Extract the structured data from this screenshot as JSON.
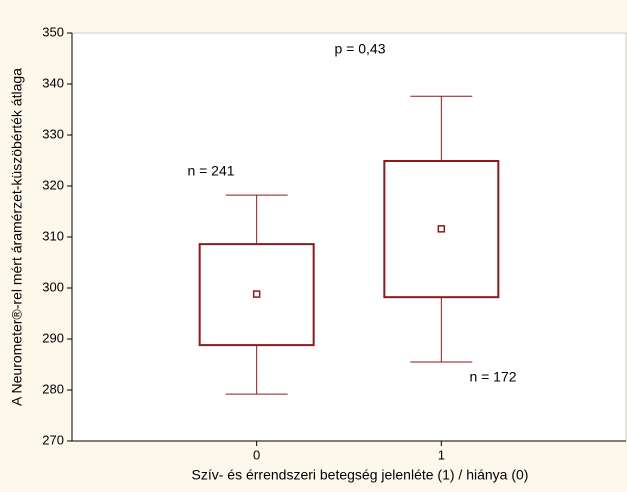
{
  "chart_data": {
    "type": "box",
    "x_label": "Szív- és érrendszeri betegség jelenléte (1) / hiánya (0)",
    "y_label": "A Neurometer®-rel mért áramérzet-küszöbérték átlaga",
    "categories": [
      "0",
      "1"
    ],
    "color": "#8b1a1a",
    "series": [
      {
        "mean": [
          298.8,
          311.6
        ],
        "box_low": [
          288.8,
          298.2
        ],
        "box_high": [
          308.6,
          324.9
        ],
        "whisker_low": [
          279.2,
          285.5
        ],
        "whisker_high": [
          318.2,
          337.6
        ]
      }
    ],
    "annotations": [
      "p = 0,43",
      "n = 241",
      "n = 172"
    ],
    "ylim": [
      270,
      350
    ],
    "yticks": [
      270,
      280,
      290,
      300,
      310,
      320,
      330,
      340,
      350
    ]
  }
}
